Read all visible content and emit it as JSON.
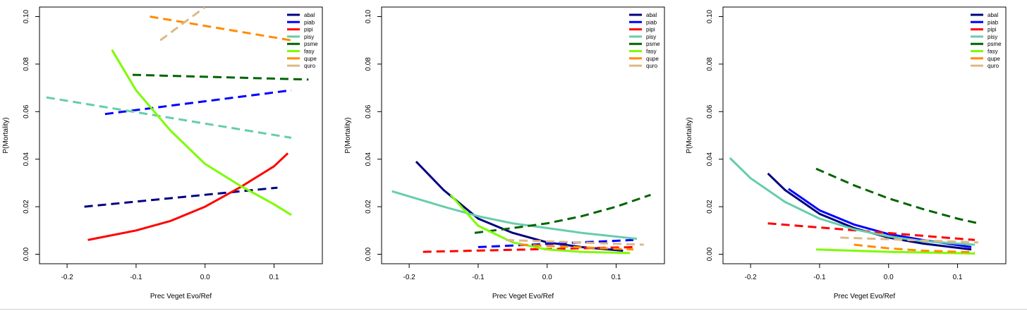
{
  "chart_data": [
    {
      "type": "line",
      "xlabel": "Prec Veget Evo/Ref",
      "ylabel": "P(Mortality)",
      "xlim": [
        -0.24,
        0.17
      ],
      "ylim": [
        -0.004,
        0.104
      ],
      "xticks": [
        "-0.2",
        "-0.1",
        "0.0",
        "0.1"
      ],
      "yticks": [
        "0.00",
        "0.02",
        "0.04",
        "0.06",
        "0.08",
        "0.10"
      ],
      "legend_position": "top-right",
      "series": [
        {
          "name": "abal",
          "color": "#000080",
          "dash": true,
          "x": [
            -0.175,
            0.105
          ],
          "y": [
            0.02,
            0.028
          ]
        },
        {
          "name": "piab",
          "color": "#0000ff",
          "dash": true,
          "x": [
            -0.145,
            0.125
          ],
          "y": [
            0.059,
            0.069
          ]
        },
        {
          "name": "pipi",
          "color": "#ff0000",
          "dash": false,
          "x": [
            -0.17,
            -0.1,
            -0.05,
            0.0,
            0.05,
            0.1,
            0.12
          ],
          "y": [
            0.006,
            0.01,
            0.014,
            0.02,
            0.028,
            0.037,
            0.0425
          ]
        },
        {
          "name": "pisy",
          "color": "#66cdaa",
          "dash": true,
          "x": [
            -0.23,
            0.125
          ],
          "y": [
            0.066,
            0.049
          ]
        },
        {
          "name": "psme",
          "color": "#006400",
          "dash": true,
          "x": [
            -0.105,
            0.15
          ],
          "y": [
            0.0755,
            0.0735
          ]
        },
        {
          "name": "fasy",
          "color": "#7cfc00",
          "dash": false,
          "x": [
            -0.135,
            -0.1,
            -0.05,
            0.0,
            0.05,
            0.1,
            0.125
          ],
          "y": [
            0.086,
            0.069,
            0.052,
            0.038,
            0.029,
            0.021,
            0.0165
          ]
        },
        {
          "name": "qupe",
          "color": "#ff8c00",
          "dash": true,
          "x": [
            -0.08,
            0.125
          ],
          "y": [
            0.1,
            0.09
          ]
        },
        {
          "name": "quro",
          "color": "#deb887",
          "dash": true,
          "x": [
            -0.065,
            0.0
          ],
          "y": [
            0.09,
            0.104
          ]
        }
      ]
    },
    {
      "type": "line",
      "xlabel": "Prec Veget Evo/Ref",
      "ylabel": "P(Mortality)",
      "xlim": [
        -0.24,
        0.17
      ],
      "ylim": [
        -0.004,
        0.104
      ],
      "xticks": [
        "-0.2",
        "-0.1",
        "0.0",
        "0.1"
      ],
      "yticks": [
        "0.00",
        "0.02",
        "0.04",
        "0.06",
        "0.08",
        "0.10"
      ],
      "legend_position": "top-right",
      "series": [
        {
          "name": "abal",
          "color": "#000080",
          "dash": false,
          "x": [
            -0.19,
            -0.15,
            -0.1,
            -0.05,
            0.0,
            0.05,
            0.11
          ],
          "y": [
            0.039,
            0.027,
            0.015,
            0.009,
            0.005,
            0.003,
            0.0015
          ]
        },
        {
          "name": "piab",
          "color": "#0000ff",
          "dash": true,
          "x": [
            -0.1,
            0.125
          ],
          "y": [
            0.003,
            0.006
          ]
        },
        {
          "name": "pipi",
          "color": "#ff0000",
          "dash": true,
          "x": [
            -0.18,
            0.125
          ],
          "y": [
            0.001,
            0.003
          ]
        },
        {
          "name": "pisy",
          "color": "#66cdaa",
          "dash": false,
          "x": [
            -0.225,
            -0.15,
            -0.1,
            -0.05,
            0.0,
            0.05,
            0.13
          ],
          "y": [
            0.0265,
            0.02,
            0.016,
            0.013,
            0.011,
            0.009,
            0.0065
          ]
        },
        {
          "name": "psme",
          "color": "#006400",
          "dash": true,
          "x": [
            -0.105,
            -0.05,
            0.0,
            0.05,
            0.1,
            0.15
          ],
          "y": [
            0.009,
            0.011,
            0.013,
            0.016,
            0.02,
            0.025
          ]
        },
        {
          "name": "fasy",
          "color": "#7cfc00",
          "dash": false,
          "x": [
            -0.14,
            -0.1,
            -0.05,
            0.0,
            0.05,
            0.12
          ],
          "y": [
            0.025,
            0.012,
            0.005,
            0.002,
            0.001,
            0.0005
          ]
        },
        {
          "name": "qupe",
          "color": "#ff8c00",
          "dash": true,
          "x": [
            -0.04,
            0.125
          ],
          "y": [
            0.004,
            0.002
          ]
        },
        {
          "name": "quro",
          "color": "#deb887",
          "dash": true,
          "x": [
            -0.06,
            0.14
          ],
          "y": [
            0.006,
            0.004
          ]
        }
      ]
    },
    {
      "type": "line",
      "xlabel": "Prec Veget Evo/Ref",
      "ylabel": "P(Mortality)",
      "xlim": [
        -0.24,
        0.17
      ],
      "ylim": [
        -0.004,
        0.104
      ],
      "xticks": [
        "-0.2",
        "-0.1",
        "0.0",
        "0.1"
      ],
      "yticks": [
        "0.00",
        "0.02",
        "0.04",
        "0.06",
        "0.08",
        "0.10"
      ],
      "legend_position": "top-right",
      "series": [
        {
          "name": "abal",
          "color": "#000080",
          "dash": false,
          "x": [
            -0.175,
            -0.15,
            -0.1,
            -0.05,
            0.0,
            0.05,
            0.12
          ],
          "y": [
            0.034,
            0.027,
            0.017,
            0.011,
            0.007,
            0.0045,
            0.002
          ]
        },
        {
          "name": "piab",
          "color": "#0000ff",
          "dash": false,
          "x": [
            -0.145,
            -0.1,
            -0.05,
            0.0,
            0.05,
            0.12
          ],
          "y": [
            0.0275,
            0.0185,
            0.0125,
            0.0085,
            0.006,
            0.003
          ]
        },
        {
          "name": "pipi",
          "color": "#ff0000",
          "dash": true,
          "x": [
            -0.175,
            0.125
          ],
          "y": [
            0.013,
            0.006
          ]
        },
        {
          "name": "pisy",
          "color": "#66cdaa",
          "dash": false,
          "x": [
            -0.23,
            -0.2,
            -0.15,
            -0.1,
            -0.05,
            0.0,
            0.05,
            0.125
          ],
          "y": [
            0.0405,
            0.032,
            0.022,
            0.015,
            0.0105,
            0.0075,
            0.0055,
            0.004
          ]
        },
        {
          "name": "psme",
          "color": "#006400",
          "dash": true,
          "x": [
            -0.105,
            -0.05,
            0.0,
            0.05,
            0.1,
            0.13
          ],
          "y": [
            0.036,
            0.029,
            0.0235,
            0.019,
            0.015,
            0.013
          ]
        },
        {
          "name": "fasy",
          "color": "#7cfc00",
          "dash": false,
          "x": [
            -0.105,
            0.0,
            0.125
          ],
          "y": [
            0.002,
            0.001,
            0.0003
          ]
        },
        {
          "name": "qupe",
          "color": "#ff8c00",
          "dash": true,
          "x": [
            -0.05,
            0.0,
            0.05,
            0.125
          ],
          "y": [
            0.004,
            0.0025,
            0.0015,
            0.0008
          ]
        },
        {
          "name": "quro",
          "color": "#deb887",
          "dash": true,
          "x": [
            -0.07,
            0.13
          ],
          "y": [
            0.007,
            0.005
          ]
        }
      ]
    }
  ]
}
